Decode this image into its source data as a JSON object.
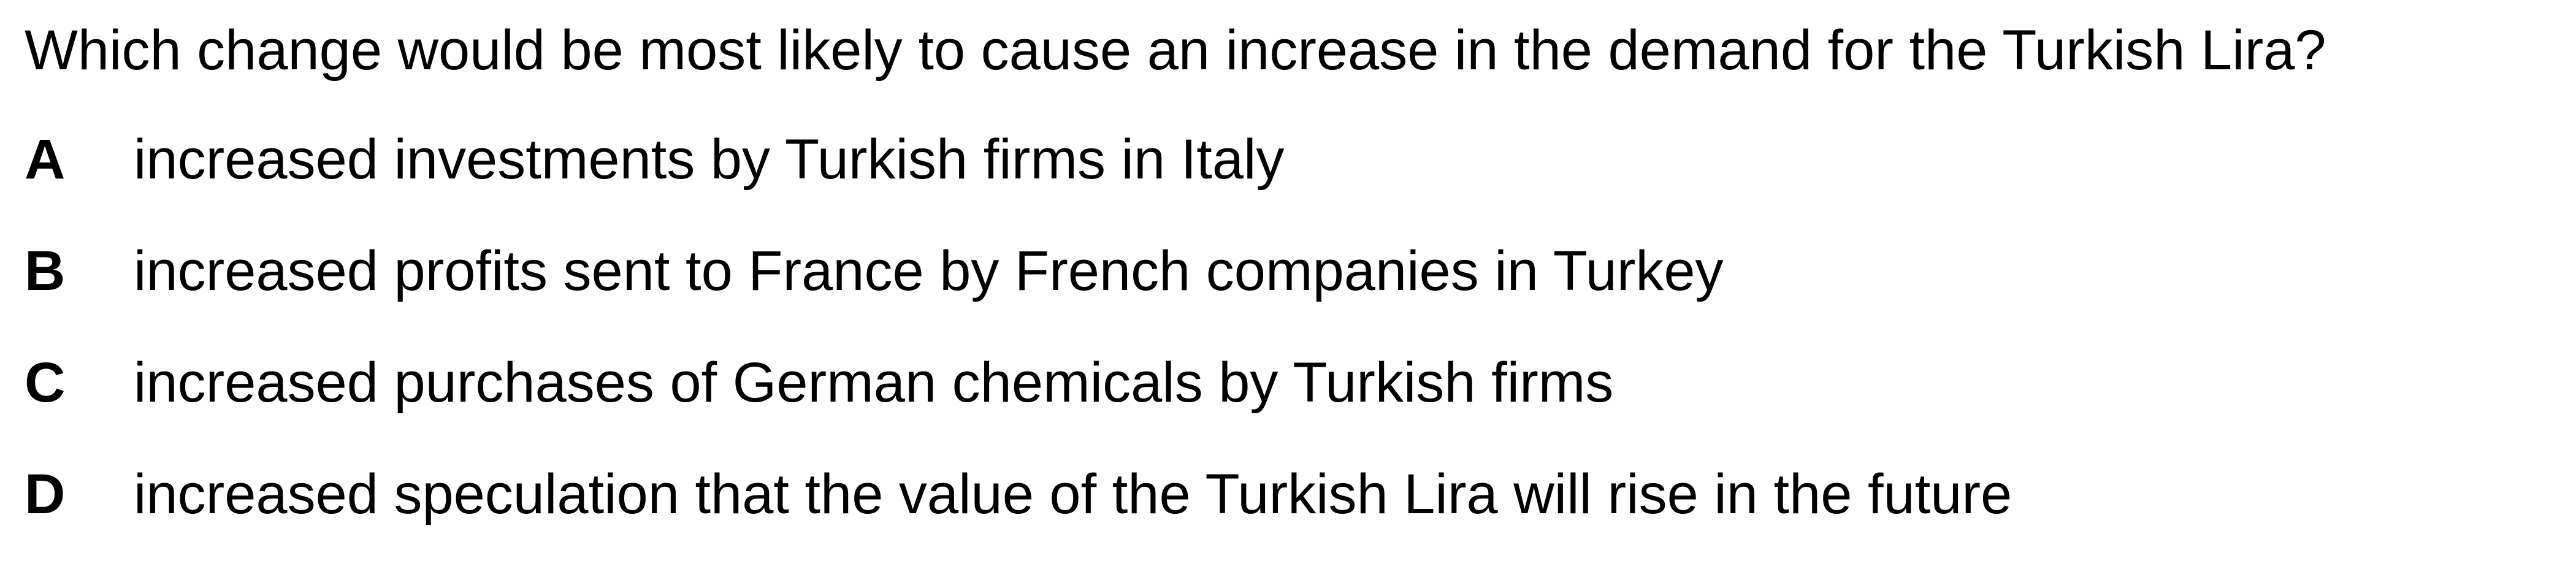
{
  "question": {
    "text": "Which change would be most likely to cause an increase in the demand for the Turkish Lira?"
  },
  "options": [
    {
      "letter": "A",
      "text": "increased investments by Turkish firms in Italy"
    },
    {
      "letter": "B",
      "text": "increased profits sent to France by French companies in Turkey"
    },
    {
      "letter": "C",
      "text": "increased purchases of German chemicals by Turkish firms"
    },
    {
      "letter": "D",
      "text": "increased speculation that the value of the Turkish Lira will rise in the future"
    }
  ]
}
